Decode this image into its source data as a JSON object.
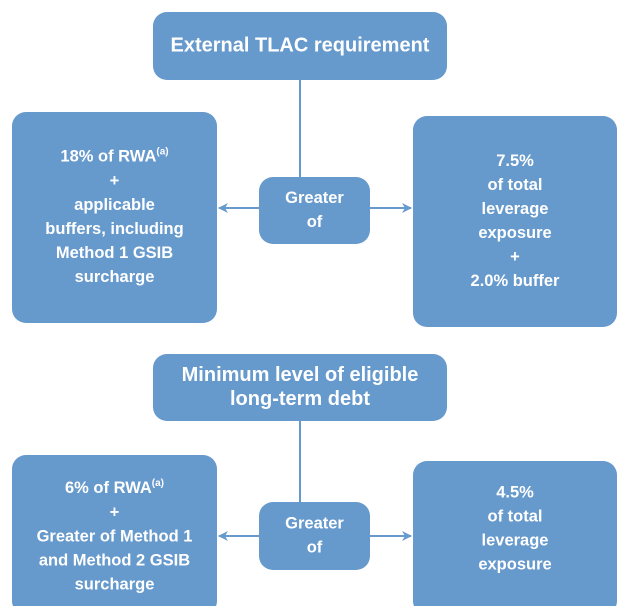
{
  "sections": [
    {
      "title": [
        "External TLAC requirement"
      ],
      "center": [
        "Greater",
        "of"
      ],
      "left": {
        "lead": "18% of RWA",
        "note": "(a)",
        "lines": [
          "+",
          "applicable",
          "buffers, including",
          "Method 1 GSIB",
          "surcharge"
        ]
      },
      "right": [
        "7.5%",
        "of total",
        "leverage",
        "exposure",
        "+",
        "2.0% buffer"
      ]
    },
    {
      "title": [
        "Minimum level of eligible",
        "long-term debt"
      ],
      "center": [
        "Greater",
        "of"
      ],
      "left": {
        "lead": "6% of RWA",
        "note": "(a)",
        "lines": [
          "+",
          "Greater of Method 1",
          "and Method 2 GSIB",
          "surcharge"
        ]
      },
      "right": [
        "4.5%",
        "of total",
        "leverage",
        "exposure"
      ]
    }
  ]
}
